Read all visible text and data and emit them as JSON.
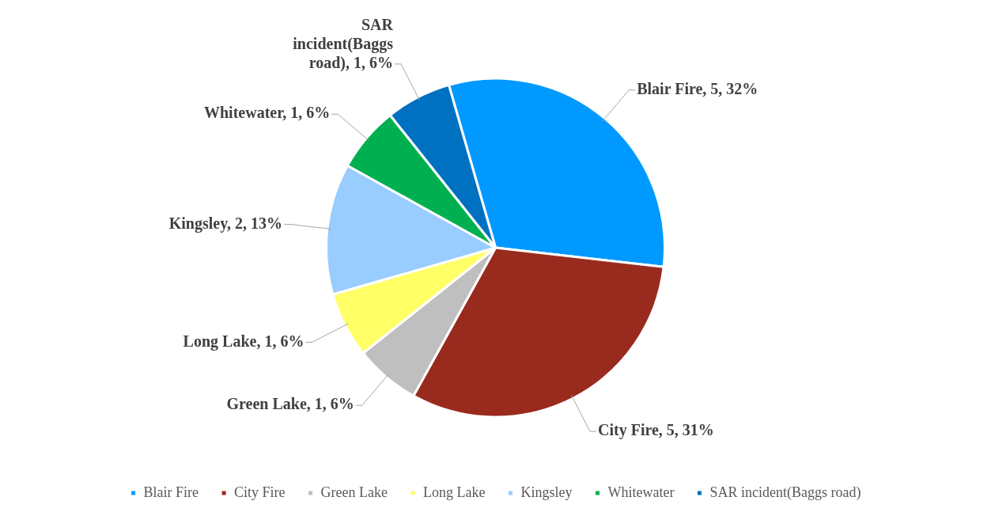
{
  "chart_data": {
    "type": "pie",
    "categories": [
      "Blair Fire",
      "City Fire",
      "Green Lake",
      "Long Lake",
      "Kingsley",
      "Whitewater",
      "SAR incident(Baggs road)"
    ],
    "values": [
      5,
      5,
      1,
      1,
      2,
      1,
      1
    ],
    "colors": [
      "#0099ff",
      "#992b1e",
      "#c0bfbf",
      "#ffff66",
      "#99ccff",
      "#00b050",
      "#0070c0"
    ],
    "value_labels": [
      "Blair Fire, 5, 32%",
      "City Fire, 5, 31%",
      "Green Lake, 1, 6%",
      "Long Lake, 1, 6%",
      "Kingsley, 2, 13%",
      "Whitewater, 1, 6%",
      "SAR incident(Baggs road), 1, 6%"
    ],
    "legend": "bottom"
  }
}
